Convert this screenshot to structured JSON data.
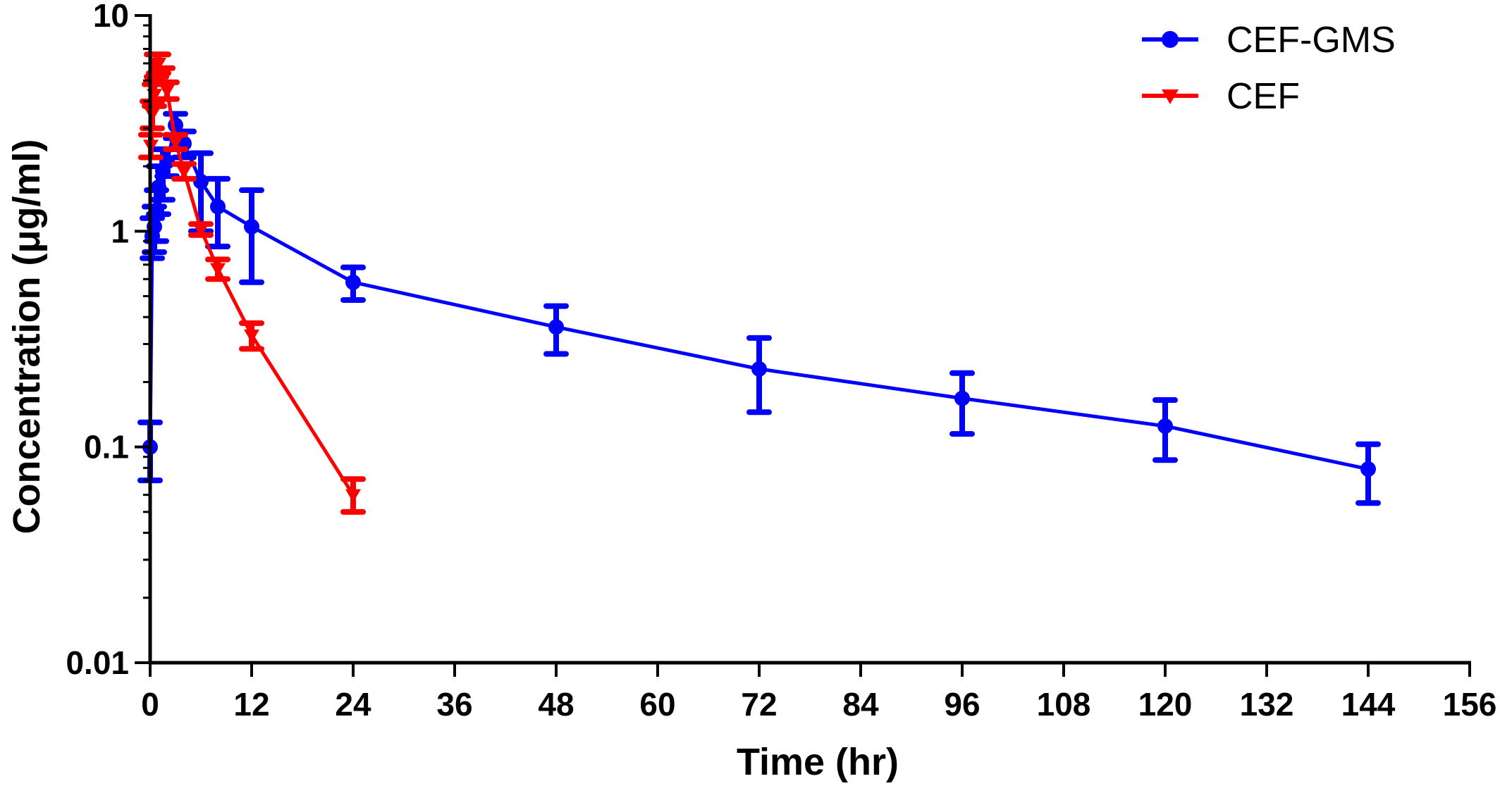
{
  "chart_data": {
    "type": "line",
    "xlabel": "Time (hr)",
    "ylabel": "Concentration (μg/ml)",
    "xlim": [
      0,
      156
    ],
    "ylim": [
      0.01,
      10
    ],
    "yscale": "log",
    "x_ticks": [
      0,
      12,
      24,
      36,
      48,
      60,
      72,
      84,
      96,
      108,
      120,
      132,
      144,
      156
    ],
    "y_ticks": [
      {
        "value": 0.01,
        "label": "0.01"
      },
      {
        "value": 0.1,
        "label": "0.1"
      },
      {
        "value": 1,
        "label": "1"
      },
      {
        "value": 10,
        "label": "10"
      }
    ],
    "grid": false,
    "legend_position": "top-right",
    "series": [
      {
        "name": "CEF-GMS",
        "color": "#0000ff",
        "marker": "circle",
        "points": [
          {
            "x": 0,
            "y": 0.1,
            "lo": 0.07,
            "hi": 0.13
          },
          {
            "x": 0.25,
            "y": 0.95,
            "lo": 0.75,
            "hi": 1.15
          },
          {
            "x": 0.5,
            "y": 1.05,
            "lo": 0.8,
            "hi": 1.3
          },
          {
            "x": 0.75,
            "y": 1.25,
            "lo": 0.9,
            "hi": 1.55
          },
          {
            "x": 1,
            "y": 1.6,
            "lo": 1.2,
            "hi": 2.0
          },
          {
            "x": 1.5,
            "y": 1.9,
            "lo": 1.4,
            "hi": 2.4
          },
          {
            "x": 2,
            "y": 2.1,
            "lo": 1.8,
            "hi": 2.4
          },
          {
            "x": 3,
            "y": 3.1,
            "lo": 2.7,
            "hi": 3.5
          },
          {
            "x": 4,
            "y": 2.55,
            "lo": 2.2,
            "hi": 2.9
          },
          {
            "x": 6,
            "y": 1.7,
            "lo": 1.0,
            "hi": 2.3
          },
          {
            "x": 8,
            "y": 1.3,
            "lo": 0.85,
            "hi": 1.75
          },
          {
            "x": 12,
            "y": 1.05,
            "lo": 0.58,
            "hi": 1.55
          },
          {
            "x": 24,
            "y": 0.58,
            "lo": 0.48,
            "hi": 0.68
          },
          {
            "x": 48,
            "y": 0.36,
            "lo": 0.27,
            "hi": 0.45
          },
          {
            "x": 72,
            "y": 0.23,
            "lo": 0.145,
            "hi": 0.32
          },
          {
            "x": 96,
            "y": 0.168,
            "lo": 0.115,
            "hi": 0.22
          },
          {
            "x": 120,
            "y": 0.125,
            "lo": 0.087,
            "hi": 0.165
          },
          {
            "x": 144,
            "y": 0.079,
            "lo": 0.055,
            "hi": 0.103
          }
        ]
      },
      {
        "name": "CEF",
        "color": "#ff0000",
        "marker": "triangle-down",
        "points": [
          {
            "x": 0.08,
            "y": 2.5,
            "lo": 2.2,
            "hi": 2.8
          },
          {
            "x": 0.25,
            "y": 3.5,
            "lo": 3.0,
            "hi": 4.0
          },
          {
            "x": 0.5,
            "y": 4.3,
            "lo": 3.8,
            "hi": 4.8
          },
          {
            "x": 0.75,
            "y": 5.9,
            "lo": 5.2,
            "hi": 6.6
          },
          {
            "x": 1,
            "y": 6.0,
            "lo": 5.4,
            "hi": 6.6
          },
          {
            "x": 1.5,
            "y": 5.3,
            "lo": 4.9,
            "hi": 5.7
          },
          {
            "x": 2,
            "y": 4.5,
            "lo": 4.1,
            "hi": 4.9
          },
          {
            "x": 3,
            "y": 2.6,
            "lo": 2.4,
            "hi": 2.8
          },
          {
            "x": 4,
            "y": 1.9,
            "lo": 1.75,
            "hi": 2.05
          },
          {
            "x": 6,
            "y": 1.02,
            "lo": 0.96,
            "hi": 1.08
          },
          {
            "x": 8,
            "y": 0.67,
            "lo": 0.6,
            "hi": 0.74
          },
          {
            "x": 12,
            "y": 0.33,
            "lo": 0.285,
            "hi": 0.375
          },
          {
            "x": 24,
            "y": 0.06,
            "lo": 0.05,
            "hi": 0.071
          }
        ]
      }
    ]
  }
}
